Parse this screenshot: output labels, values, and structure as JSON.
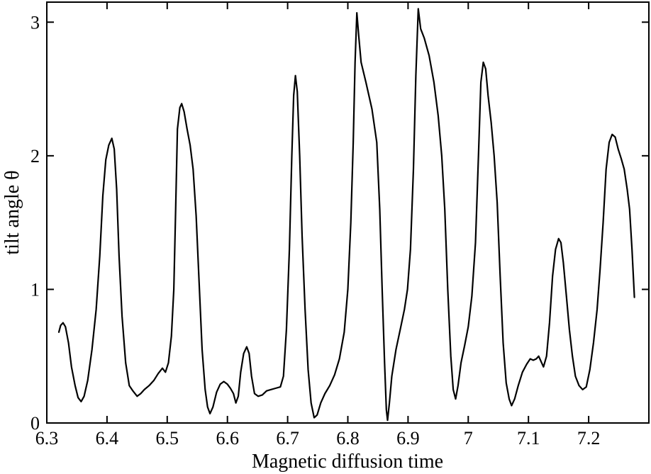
{
  "chart_data": {
    "type": "line",
    "xlabel": "Magnetic diffusion time",
    "ylabel": "tilt angle θ",
    "xlim": [
      6.3,
      7.3
    ],
    "ylim": [
      0,
      3.15
    ],
    "grid": false,
    "legend": "none",
    "x_ticks": [
      6.3,
      6.4,
      6.5,
      6.6,
      6.7,
      6.8,
      6.9,
      7.0,
      7.1,
      7.2
    ],
    "x_tick_labels": [
      "6.3",
      "6.4",
      "6.5",
      "6.6",
      "6.7",
      "6.8",
      "6.9",
      "7",
      "7.1",
      "7.2"
    ],
    "y_ticks": [
      0,
      1,
      2,
      3
    ],
    "y_tick_labels": [
      "0",
      "1",
      "2",
      "3"
    ],
    "series": [
      {
        "color": "#000000",
        "points": [
          [
            6.32,
            0.68
          ],
          [
            6.323,
            0.73
          ],
          [
            6.327,
            0.75
          ],
          [
            6.331,
            0.72
          ],
          [
            6.336,
            0.6
          ],
          [
            6.341,
            0.42
          ],
          [
            6.347,
            0.28
          ],
          [
            6.352,
            0.19
          ],
          [
            6.357,
            0.16
          ],
          [
            6.362,
            0.2
          ],
          [
            6.368,
            0.32
          ],
          [
            6.375,
            0.55
          ],
          [
            6.382,
            0.85
          ],
          [
            6.388,
            1.25
          ],
          [
            6.393,
            1.7
          ],
          [
            6.398,
            1.97
          ],
          [
            6.403,
            2.08
          ],
          [
            6.408,
            2.13
          ],
          [
            6.412,
            2.05
          ],
          [
            6.416,
            1.75
          ],
          [
            6.42,
            1.25
          ],
          [
            6.425,
            0.8
          ],
          [
            6.431,
            0.45
          ],
          [
            6.437,
            0.28
          ],
          [
            6.443,
            0.24
          ],
          [
            6.45,
            0.2
          ],
          [
            6.456,
            0.22
          ],
          [
            6.462,
            0.25
          ],
          [
            6.47,
            0.28
          ],
          [
            6.478,
            0.32
          ],
          [
            6.485,
            0.37
          ],
          [
            6.492,
            0.41
          ],
          [
            6.497,
            0.38
          ],
          [
            6.502,
            0.45
          ],
          [
            6.507,
            0.65
          ],
          [
            6.511,
            1.0
          ],
          [
            6.514,
            1.6
          ],
          [
            6.517,
            2.2
          ],
          [
            6.521,
            2.36
          ],
          [
            6.524,
            2.39
          ],
          [
            6.528,
            2.33
          ],
          [
            6.533,
            2.2
          ],
          [
            6.538,
            2.08
          ],
          [
            6.543,
            1.9
          ],
          [
            6.548,
            1.55
          ],
          [
            6.553,
            1.05
          ],
          [
            6.558,
            0.55
          ],
          [
            6.563,
            0.25
          ],
          [
            6.567,
            0.12
          ],
          [
            6.571,
            0.07
          ],
          [
            6.576,
            0.12
          ],
          [
            6.582,
            0.23
          ],
          [
            6.588,
            0.29
          ],
          [
            6.594,
            0.31
          ],
          [
            6.6,
            0.29
          ],
          [
            6.605,
            0.26
          ],
          [
            6.61,
            0.22
          ],
          [
            6.614,
            0.15
          ],
          [
            6.618,
            0.2
          ],
          [
            6.622,
            0.38
          ],
          [
            6.627,
            0.52
          ],
          [
            6.632,
            0.57
          ],
          [
            6.636,
            0.52
          ],
          [
            6.64,
            0.35
          ],
          [
            6.645,
            0.22
          ],
          [
            6.651,
            0.2
          ],
          [
            6.658,
            0.21
          ],
          [
            6.665,
            0.24
          ],
          [
            6.672,
            0.25
          ],
          [
            6.68,
            0.26
          ],
          [
            6.688,
            0.27
          ],
          [
            6.693,
            0.35
          ],
          [
            6.698,
            0.7
          ],
          [
            6.703,
            1.3
          ],
          [
            6.707,
            2.0
          ],
          [
            6.71,
            2.45
          ],
          [
            6.713,
            2.6
          ],
          [
            6.716,
            2.48
          ],
          [
            6.72,
            2.0
          ],
          [
            6.724,
            1.4
          ],
          [
            6.729,
            0.85
          ],
          [
            6.734,
            0.4
          ],
          [
            6.739,
            0.15
          ],
          [
            6.744,
            0.04
          ],
          [
            6.749,
            0.06
          ],
          [
            6.755,
            0.15
          ],
          [
            6.762,
            0.22
          ],
          [
            6.77,
            0.28
          ],
          [
            6.778,
            0.36
          ],
          [
            6.786,
            0.48
          ],
          [
            6.794,
            0.68
          ],
          [
            6.8,
            1.0
          ],
          [
            6.805,
            1.5
          ],
          [
            6.809,
            2.1
          ],
          [
            6.812,
            2.7
          ],
          [
            6.815,
            3.07
          ],
          [
            6.818,
            2.9
          ],
          [
            6.822,
            2.7
          ],
          [
            6.83,
            2.55
          ],
          [
            6.84,
            2.35
          ],
          [
            6.848,
            2.1
          ],
          [
            6.853,
            1.6
          ],
          [
            6.857,
            1.0
          ],
          [
            6.861,
            0.45
          ],
          [
            6.864,
            0.1
          ],
          [
            6.866,
            0.02
          ],
          [
            6.869,
            0.15
          ],
          [
            6.873,
            0.35
          ],
          [
            6.88,
            0.55
          ],
          [
            6.888,
            0.72
          ],
          [
            6.894,
            0.85
          ],
          [
            6.899,
            1.0
          ],
          [
            6.904,
            1.3
          ],
          [
            6.909,
            1.9
          ],
          [
            6.913,
            2.6
          ],
          [
            6.917,
            3.1
          ],
          [
            6.921,
            2.95
          ],
          [
            6.927,
            2.88
          ],
          [
            6.935,
            2.75
          ],
          [
            6.943,
            2.55
          ],
          [
            6.95,
            2.3
          ],
          [
            6.956,
            2.0
          ],
          [
            6.961,
            1.6
          ],
          [
            6.966,
            1.0
          ],
          [
            6.971,
            0.5
          ],
          [
            6.975,
            0.25
          ],
          [
            6.979,
            0.18
          ],
          [
            6.983,
            0.28
          ],
          [
            6.988,
            0.45
          ],
          [
            6.994,
            0.58
          ],
          [
            7.0,
            0.72
          ],
          [
            7.006,
            0.95
          ],
          [
            7.012,
            1.35
          ],
          [
            7.017,
            2.0
          ],
          [
            7.021,
            2.55
          ],
          [
            7.025,
            2.7
          ],
          [
            7.029,
            2.65
          ],
          [
            7.033,
            2.45
          ],
          [
            7.038,
            2.25
          ],
          [
            7.043,
            2.0
          ],
          [
            7.048,
            1.65
          ],
          [
            7.053,
            1.1
          ],
          [
            7.058,
            0.6
          ],
          [
            7.063,
            0.3
          ],
          [
            7.068,
            0.18
          ],
          [
            7.072,
            0.13
          ],
          [
            7.077,
            0.18
          ],
          [
            7.083,
            0.28
          ],
          [
            7.09,
            0.38
          ],
          [
            7.097,
            0.44
          ],
          [
            7.103,
            0.48
          ],
          [
            7.108,
            0.47
          ],
          [
            7.113,
            0.48
          ],
          [
            7.117,
            0.5
          ],
          [
            7.121,
            0.46
          ],
          [
            7.125,
            0.42
          ],
          [
            7.13,
            0.5
          ],
          [
            7.135,
            0.75
          ],
          [
            7.14,
            1.1
          ],
          [
            7.145,
            1.3
          ],
          [
            7.15,
            1.38
          ],
          [
            7.154,
            1.35
          ],
          [
            7.158,
            1.2
          ],
          [
            7.163,
            0.95
          ],
          [
            7.168,
            0.7
          ],
          [
            7.173,
            0.5
          ],
          [
            7.178,
            0.35
          ],
          [
            7.184,
            0.28
          ],
          [
            7.19,
            0.25
          ],
          [
            7.196,
            0.27
          ],
          [
            7.202,
            0.4
          ],
          [
            7.208,
            0.6
          ],
          [
            7.214,
            0.85
          ],
          [
            7.219,
            1.15
          ],
          [
            7.224,
            1.5
          ],
          [
            7.229,
            1.9
          ],
          [
            7.234,
            2.1
          ],
          [
            7.239,
            2.16
          ],
          [
            7.244,
            2.14
          ],
          [
            7.249,
            2.05
          ],
          [
            7.254,
            1.98
          ],
          [
            7.259,
            1.9
          ],
          [
            7.264,
            1.75
          ],
          [
            7.268,
            1.6
          ],
          [
            7.272,
            1.3
          ],
          [
            7.276,
            0.94
          ]
        ]
      }
    ]
  }
}
